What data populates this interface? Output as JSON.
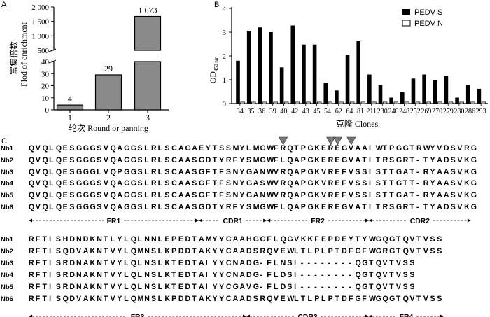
{
  "panel_labels": {
    "a": "A",
    "b": "B",
    "c": "C"
  },
  "chart_data": [
    {
      "type": "bar",
      "panel": "A",
      "categories": [
        "1",
        "2",
        "3"
      ],
      "values": [
        4,
        29,
        1673
      ],
      "value_labels": [
        "4",
        "29",
        "1 673"
      ],
      "ylabel_cn": "富集倍数",
      "ylabel_en": "Flod of enrichment",
      "xlabel": "轮次 Round or panning",
      "axis_break": {
        "lower_range": [
          0,
          40
        ],
        "upper_range": [
          500,
          2000
        ]
      },
      "yticks_lower": [
        "0",
        "10",
        "20",
        "30",
        "40"
      ],
      "yticks_upper": [
        "500",
        "1 000",
        "1 500",
        "2 000"
      ],
      "bar_color": "#8a8a8a"
    },
    {
      "type": "bar",
      "panel": "B",
      "categories": [
        "34",
        "35",
        "36",
        "39",
        "40",
        "42",
        "43",
        "45",
        "54",
        "62",
        "64",
        "81",
        "211",
        "230",
        "240",
        "248",
        "252",
        "269",
        "270",
        "279",
        "280",
        "286",
        "293"
      ],
      "series": [
        {
          "name": "PEDV S",
          "color": "#000000",
          "values": [
            1.8,
            3.05,
            3.2,
            3.0,
            1.52,
            3.28,
            2.48,
            2.48,
            0.88,
            0.55,
            2.05,
            2.62,
            1.22,
            0.78,
            0.25,
            0.48,
            1.05,
            1.22,
            0.98,
            1.15,
            0.25,
            0.78,
            0.62
          ]
        },
        {
          "name": "PEDV N",
          "color": "#ffffff",
          "values": [
            0.06,
            0.06,
            0.06,
            0.06,
            0.06,
            0.06,
            0.06,
            0.06,
            0.06,
            0.06,
            0.06,
            0.06,
            0.06,
            0.06,
            0.06,
            0.06,
            0.06,
            0.06,
            0.06,
            0.06,
            0.06,
            0.06,
            0.06
          ]
        }
      ],
      "ylabel_main": "OD",
      "ylabel_sub": "450 nm",
      "xlabel": "克隆  Clones",
      "ylim": [
        0,
        4
      ],
      "yticks": [
        "0",
        "1",
        "2",
        "3",
        "4"
      ]
    }
  ],
  "alignment": {
    "names": [
      "Nb1",
      "Nb2",
      "Nb3",
      "Nb4",
      "Nb5",
      "Nb6"
    ],
    "block1": [
      "QVQLQESGGGSVQAGGSLRLSCAGAEYTSSMYLMGWFRQTPGKEREGVAAIWTPGGTRWYVDSVRG",
      "QVQLQESGGGSVQAGGSLRLSCAASGDTYRFYSMGWFLQAPGKEREGVATITRSGRT-TYADSVKG",
      "QVQLQESGGGLVQPGGSLRLSCAASGFTFSNYGANWVRQAPGKVREFVSSISTTGAT-RYAASVKG",
      "QVQLQESGGGSVQAGGSLRLSCAASGFTFSNYGASWVRQAPGKVREFVSSISTTGTT-RYAASVKG",
      "QVQLQESGGGSVQAGGSLRLSCAASGFTFSNYGANWVRQAPGKVREFVSSISTTGAT-RYAASVKG",
      "QVQLQESGGGSVQAGGSLRLSCAASGDTYRFYSMGWFLQAPGKEREGVATITRSGRT-TYADSVKG"
    ],
    "block2": [
      "RFTISHDNDKNTLYLQLNNLEPEDTAMYYCAAHGGFLQGVKKFEPDEYTYWGQGTQVTVSS",
      "RFTISQDVAKNTVYLQMNSLKPDDTAKYYCAADSRQVEWLTLPLPTDFGFWGRGTQVTVSS",
      "RFTISRDNAKNTVYLQLNSLKTEDTAIYYCNADG-FLNSI--------QGTQVTVSS",
      "RFTISRDNAKNTVYLQLNSLKTEDTAIYYCNADG-FLDSI--------QGTQVTVSS",
      "RFTISRDNAKNTVYLQLNSLKTEDTAIYYCGAVG-FLDSI--------QGTQVTVSS",
      "RFTISQDVAKNTVYLQMNSLKPDDTAKYYCAADSRQVEWLTLPLPTDFGFWGQGTQVTVSS"
    ],
    "regions_top": [
      "FR1",
      "CDR1",
      "FR2",
      "CDR2"
    ],
    "regions_bottom": [
      "FR3",
      "CDR3",
      "FR4"
    ]
  }
}
